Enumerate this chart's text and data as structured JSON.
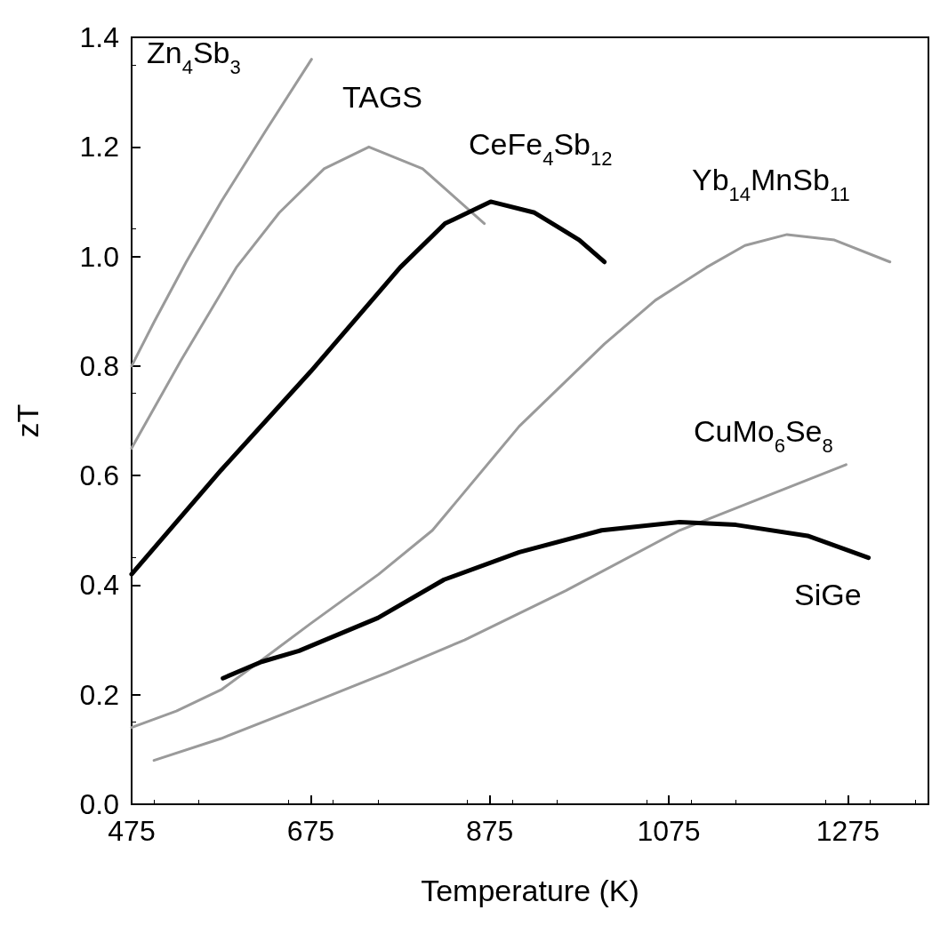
{
  "chart_data": {
    "type": "line",
    "xlabel": "Temperature (K)",
    "ylabel": "zT",
    "xlim": [
      475,
      1365
    ],
    "xticks": [
      475,
      675,
      875,
      1075,
      1275
    ],
    "ylim": [
      0,
      1.4
    ],
    "yticks": [
      {
        "value": 0,
        "label": "0.0"
      },
      0.2,
      0.4,
      0.6,
      0.8,
      {
        "value": 1,
        "label": "1.0"
      },
      1.2,
      1.4
    ],
    "grid": false,
    "legend": false,
    "marker": "none",
    "line_style": "solid",
    "series": [
      {
        "name": "Zn$_{4}$Sb$_{3}$",
        "color": "#9a9a9a",
        "x": [
          475,
          500,
          536,
          575,
          625,
          676
        ],
        "values": [
          0.8,
          0.88,
          0.99,
          1.1,
          1.23,
          1.36
        ]
      },
      {
        "name": "TAGS",
        "color": "#9a9a9a",
        "x": [
          475,
          530,
          592,
          640,
          690,
          740,
          800,
          869
        ],
        "values": [
          0.65,
          0.81,
          0.98,
          1.08,
          1.16,
          1.2,
          1.16,
          1.06
        ]
      },
      {
        "name": "CeFe$_{4}$Sb$_{12}$",
        "color": "#000000",
        "x": [
          475,
          575,
          675,
          775,
          825,
          876,
          925,
          975,
          1003
        ],
        "values": [
          0.42,
          0.61,
          0.79,
          0.98,
          1.06,
          1.1,
          1.08,
          1.03,
          0.99
        ]
      },
      {
        "name": "Yb$_{14}$MnSb$_{11}$",
        "color": "#9a9a9a",
        "x": [
          475,
          525,
          576,
          626,
          675,
          751,
          811,
          908,
          1003,
          1060,
          1117,
          1160,
          1207,
          1260,
          1322
        ],
        "values": [
          0.14,
          0.17,
          0.21,
          0.27,
          0.33,
          0.42,
          0.5,
          0.69,
          0.84,
          0.92,
          0.98,
          1.02,
          1.04,
          1.03,
          0.99
        ]
      },
      {
        "name": "CuMo$_{6}$Se$_{8}$",
        "color": "#9a9a9a",
        "x": [
          500,
          575,
          668,
          760,
          847,
          960,
          1087,
          1180,
          1273
        ],
        "values": [
          0.08,
          0.12,
          0.18,
          0.24,
          0.3,
          0.39,
          0.5,
          0.56,
          0.62
        ]
      },
      {
        "name": "SiGe",
        "color": "#000000",
        "x": [
          577,
          620,
          662,
          750,
          824,
          908,
          1000,
          1087,
          1150,
          1230,
          1298
        ],
        "values": [
          0.23,
          0.26,
          0.28,
          0.34,
          0.41,
          0.46,
          0.5,
          0.515,
          0.51,
          0.49,
          0.45
        ]
      }
    ]
  }
}
